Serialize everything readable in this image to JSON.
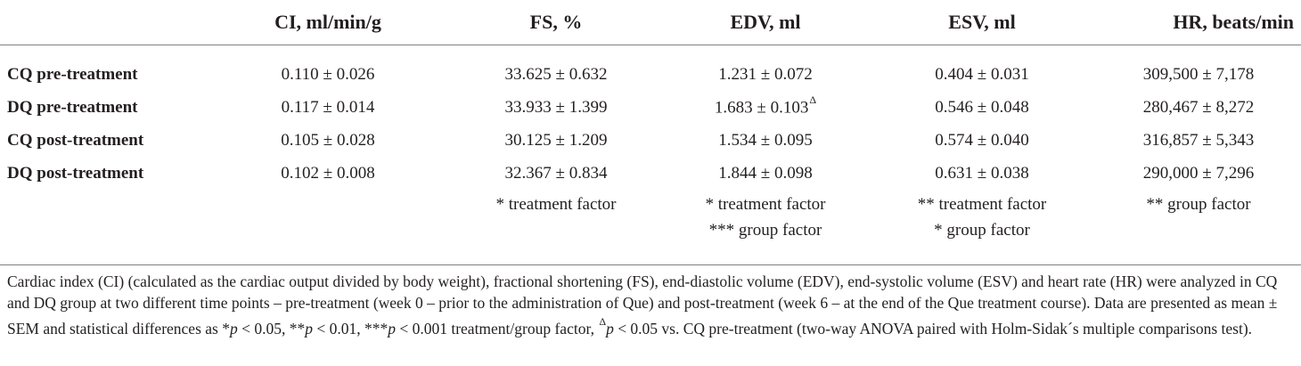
{
  "table": {
    "headers": [
      "",
      "CI, ml/min/g",
      "FS, %",
      "EDV, ml",
      "ESV, ml",
      "HR, beats/min"
    ],
    "rows": [
      {
        "label": "CQ pre-treatment",
        "values": [
          "0.110 ± 0.026",
          "33.625 ± 0.632",
          "1.231 ± 0.072",
          "0.404 ± 0.031",
          "309,500 ± 7,178"
        ],
        "marks": [
          "",
          "",
          "",
          "",
          ""
        ]
      },
      {
        "label": "DQ pre-treatment",
        "values": [
          "0.117 ± 0.014",
          "33.933 ± 1.399",
          "1.683 ± 0.103",
          "0.546 ± 0.048",
          "280,467 ± 8,272"
        ],
        "marks": [
          "",
          "",
          "Δ",
          "",
          ""
        ]
      },
      {
        "label": "CQ post-treatment",
        "values": [
          "0.105 ± 0.028",
          "30.125 ± 1.209",
          "1.534 ± 0.095",
          "0.574 ± 0.040",
          "316,857 ± 5,343"
        ],
        "marks": [
          "",
          "",
          "",
          "",
          ""
        ]
      },
      {
        "label": "DQ post-treatment",
        "values": [
          "0.102 ± 0.008",
          "32.367 ± 0.834",
          "1.844 ± 0.098",
          "0.631 ± 0.038",
          "290,000 ± 7,296"
        ],
        "marks": [
          "",
          "",
          "",
          "",
          ""
        ]
      }
    ],
    "significance": [
      [],
      [
        "* treatment factor"
      ],
      [
        "* treatment factor",
        "*** group factor"
      ],
      [
        "** treatment factor",
        "* group factor"
      ],
      [
        "** group factor"
      ]
    ]
  },
  "caption": {
    "part1": "Cardiac index (CI) (calculated as the cardiac output divided by body weight), fractional shortening (FS), end-diastolic volume (EDV), end-systolic volume (ESV) and heart rate (HR) were analyzed in CQ and DQ group at two different time points – pre-treatment (week 0 – prior to the administration of Que) and post-treatment (week 6 – at the end of the Que treatment course). Data are presented as mean ± SEM and statistical differences as *",
    "p1": "p",
    "part2": " < 0.05, **",
    "p2": "p",
    "part3": " < 0.01, ***",
    "p3": "p",
    "part4": " < 0.001 treatment/group factor, ",
    "delta": "Δ",
    "p4": "p",
    "part5": " < 0.05 vs. CQ pre-treatment (two-way ANOVA paired with Holm-Sidak´s multiple comparisons test)."
  }
}
